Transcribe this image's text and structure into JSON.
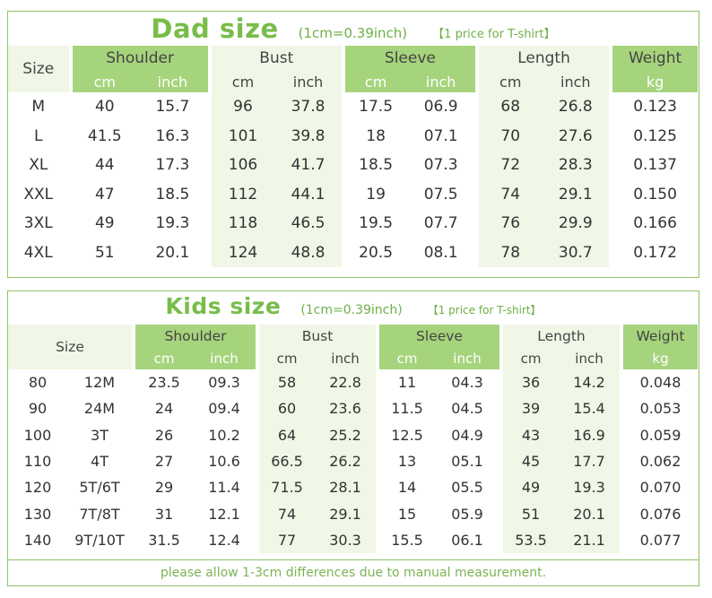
{
  "dad": {
    "title": "Dad size",
    "note": "(1cm=0.39inch)",
    "price_note": "【1 price for T-shirt】",
    "headers": [
      "Size",
      "Shoulder",
      "Bust",
      "Sleeve",
      "Length",
      "Weight"
    ],
    "units": [
      "cm",
      "inch",
      "cm",
      "inch",
      "cm",
      "inch",
      "cm",
      "inch",
      "kg"
    ],
    "rows": [
      [
        "M",
        "40",
        "15.7",
        "96",
        "37.8",
        "17.5",
        "06.9",
        "68",
        "26.8",
        "0.123"
      ],
      [
        "L",
        "41.5",
        "16.3",
        "101",
        "39.8",
        "18",
        "07.1",
        "70",
        "27.6",
        "0.125"
      ],
      [
        "XL",
        "44",
        "17.3",
        "106",
        "41.7",
        "18.5",
        "07.3",
        "72",
        "28.3",
        "0.137"
      ],
      [
        "XXL",
        "47",
        "18.5",
        "112",
        "44.1",
        "19",
        "07.5",
        "74",
        "29.1",
        "0.150"
      ],
      [
        "3XL",
        "49",
        "19.3",
        "118",
        "46.5",
        "19.5",
        "07.7",
        "76",
        "29.9",
        "0.166"
      ],
      [
        "4XL",
        "51",
        "20.1",
        "124",
        "48.8",
        "20.5",
        "08.1",
        "78",
        "30.7",
        "0.172"
      ]
    ]
  },
  "kids": {
    "title": "Kids size",
    "note": "(1cm=0.39inch)",
    "price_note": "【1 price for T-shirt】",
    "headers": [
      "Size",
      "Shoulder",
      "Bust",
      "Sleeve",
      "Length",
      "Weight"
    ],
    "units": [
      "cm",
      "inch",
      "cm",
      "inch",
      "cm",
      "inch",
      "cm",
      "inch",
      "kg"
    ],
    "rows": [
      [
        "80",
        "12M",
        "23.5",
        "09.3",
        "58",
        "22.8",
        "11",
        "04.3",
        "36",
        "14.2",
        "0.048"
      ],
      [
        "90",
        "24M",
        "24",
        "09.4",
        "60",
        "23.6",
        "11.5",
        "04.5",
        "39",
        "15.4",
        "0.053"
      ],
      [
        "100",
        "3T",
        "26",
        "10.2",
        "64",
        "25.2",
        "12.5",
        "04.9",
        "43",
        "16.9",
        "0.059"
      ],
      [
        "110",
        "4T",
        "27",
        "10.6",
        "66.5",
        "26.2",
        "13",
        "05.1",
        "45",
        "17.7",
        "0.062"
      ],
      [
        "120",
        "5T/6T",
        "29",
        "11.4",
        "71.5",
        "28.1",
        "14",
        "05.5",
        "49",
        "19.3",
        "0.070"
      ],
      [
        "130",
        "7T/8T",
        "31",
        "12.1",
        "74",
        "29.1",
        "15",
        "05.9",
        "51",
        "20.1",
        "0.076"
      ],
      [
        "140",
        "9T/10T",
        "31.5",
        "12.4",
        "77",
        "30.3",
        "15.5",
        "06.1",
        "53.5",
        "21.1",
        "0.077"
      ]
    ],
    "footer": "please allow 1-3cm differences due to manual measurement."
  },
  "colors": {
    "accent": "#78bd4a",
    "header_green": "#a6d47c",
    "light_green": "#f0f7e6",
    "border": "#8cc46b"
  }
}
